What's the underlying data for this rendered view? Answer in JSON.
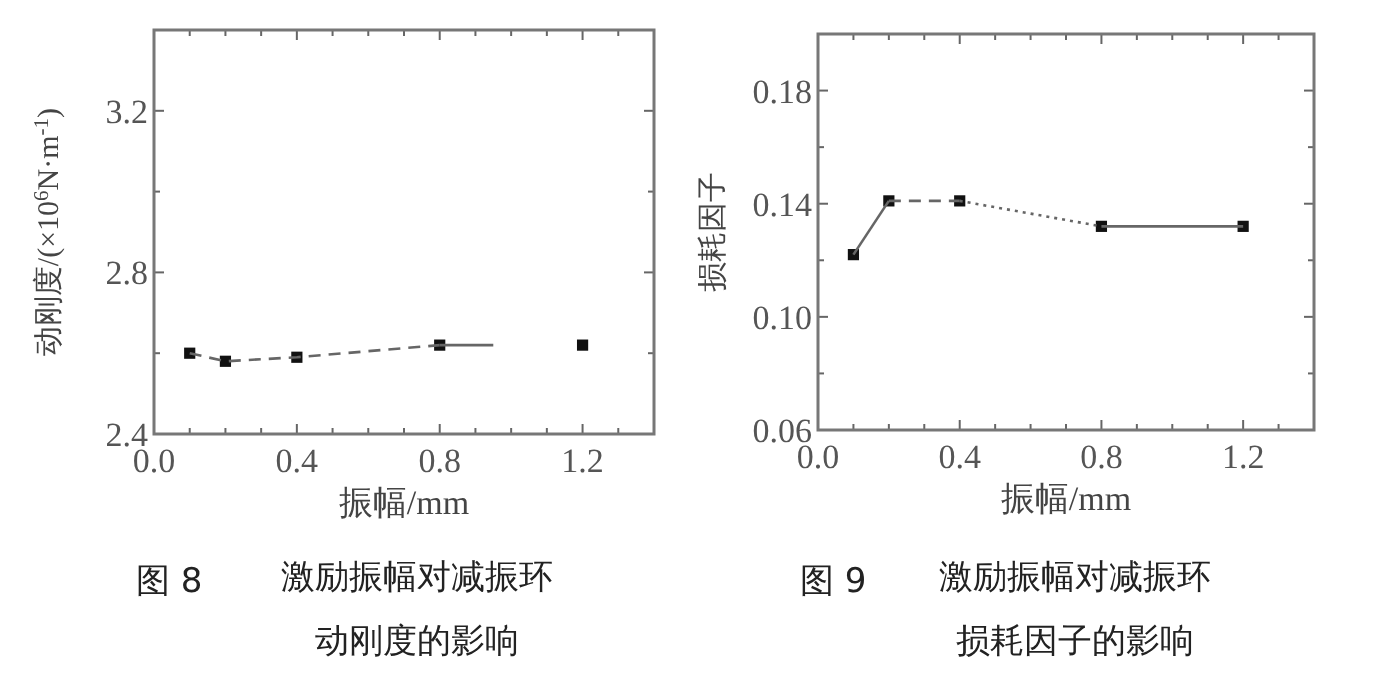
{
  "chart_data": [
    {
      "type": "line",
      "xlabel": "振幅/mm",
      "ylabel": "动刚度/(×10$^{6}$N·m$^{-1}$)",
      "xlim": [
        0,
        1.4
      ],
      "ylim": [
        2.4,
        3.4
      ],
      "xticks": [
        {
          "value": 0,
          "label": "0.0"
        },
        {
          "value": 0.1,
          "label": null
        },
        {
          "value": 0.2,
          "label": null
        },
        {
          "value": 0.3,
          "label": null
        },
        0.4,
        {
          "value": 0.5,
          "label": null
        },
        {
          "value": 0.6,
          "label": null
        },
        {
          "value": 0.7,
          "label": null
        },
        0.8,
        {
          "value": 0.9,
          "label": null
        },
        {
          "value": 1.0,
          "label": null
        },
        {
          "value": 1.1,
          "label": null
        },
        1.2,
        {
          "value": 1.3,
          "label": null
        }
      ],
      "yticks": [
        2.4,
        {
          "value": 2.6,
          "label": null
        },
        2.8,
        {
          "value": 3.0,
          "label": null
        },
        3.2
      ],
      "series": [
        {
          "type": "scatter",
          "marker": "square",
          "color": "#111111",
          "x": [
            0.1,
            0.2,
            0.4,
            0.8,
            1.2
          ],
          "values": [
            2.6,
            2.58,
            2.59,
            2.62,
            2.62
          ]
        },
        {
          "type": "line",
          "line_style": "dashed",
          "color": "#666666",
          "x": [
            0.1,
            0.2,
            0.4,
            0.8
          ],
          "values": [
            2.6,
            2.58,
            2.59,
            2.62
          ]
        },
        {
          "type": "line",
          "line_style": "solid",
          "color": "#666666",
          "x": [
            0.8,
            0.95
          ],
          "values": [
            2.62,
            2.62
          ]
        }
      ],
      "annotations": [
        "图 8",
        "激励振幅对减振环动刚度的影响"
      ]
    },
    {
      "type": "line",
      "xlabel": "振幅/mm",
      "ylabel": "损耗因子",
      "xlim": [
        0,
        1.4
      ],
      "ylim": [
        0.06,
        0.2
      ],
      "xticks": [
        {
          "value": 0,
          "label": "0.0"
        },
        {
          "value": 0.1,
          "label": null
        },
        {
          "value": 0.2,
          "label": null
        },
        {
          "value": 0.3,
          "label": null
        },
        0.4,
        {
          "value": 0.5,
          "label": null
        },
        {
          "value": 0.6,
          "label": null
        },
        {
          "value": 0.7,
          "label": null
        },
        0.8,
        {
          "value": 0.9,
          "label": null
        },
        {
          "value": 1.0,
          "label": null
        },
        {
          "value": 1.1,
          "label": null
        },
        1.2,
        {
          "value": 1.3,
          "label": null
        }
      ],
      "yticks": [
        0.06,
        {
          "value": 0.08,
          "label": null
        },
        {
          "value": 0.1,
          "label": "0.10"
        },
        {
          "value": 0.12,
          "label": null
        },
        0.14,
        {
          "value": 0.16,
          "label": null
        },
        0.18
      ],
      "series": [
        {
          "type": "scatter",
          "marker": "square",
          "color": "#111111",
          "x": [
            0.1,
            0.2,
            0.4,
            0.8,
            1.2
          ],
          "values": [
            0.122,
            0.141,
            0.141,
            0.132,
            0.132
          ]
        },
        {
          "type": "line",
          "line_style": "solid",
          "color": "#666666",
          "x": [
            0.1,
            0.2
          ],
          "values": [
            0.122,
            0.141
          ]
        },
        {
          "type": "line",
          "line_style": "dashed",
          "color": "#666666",
          "x": [
            0.2,
            0.4
          ],
          "values": [
            0.141,
            0.141
          ]
        },
        {
          "type": "line",
          "line_style": "dotted",
          "color": "#666666",
          "x": [
            0.4,
            0.8
          ],
          "values": [
            0.141,
            0.132
          ]
        },
        {
          "type": "line",
          "line_style": "solid",
          "color": "#666666",
          "x": [
            0.8,
            1.2
          ],
          "values": [
            0.132,
            0.132
          ]
        }
      ],
      "annotations": [
        "图 9",
        "激励振幅对减振环损耗因子的影响"
      ]
    }
  ]
}
